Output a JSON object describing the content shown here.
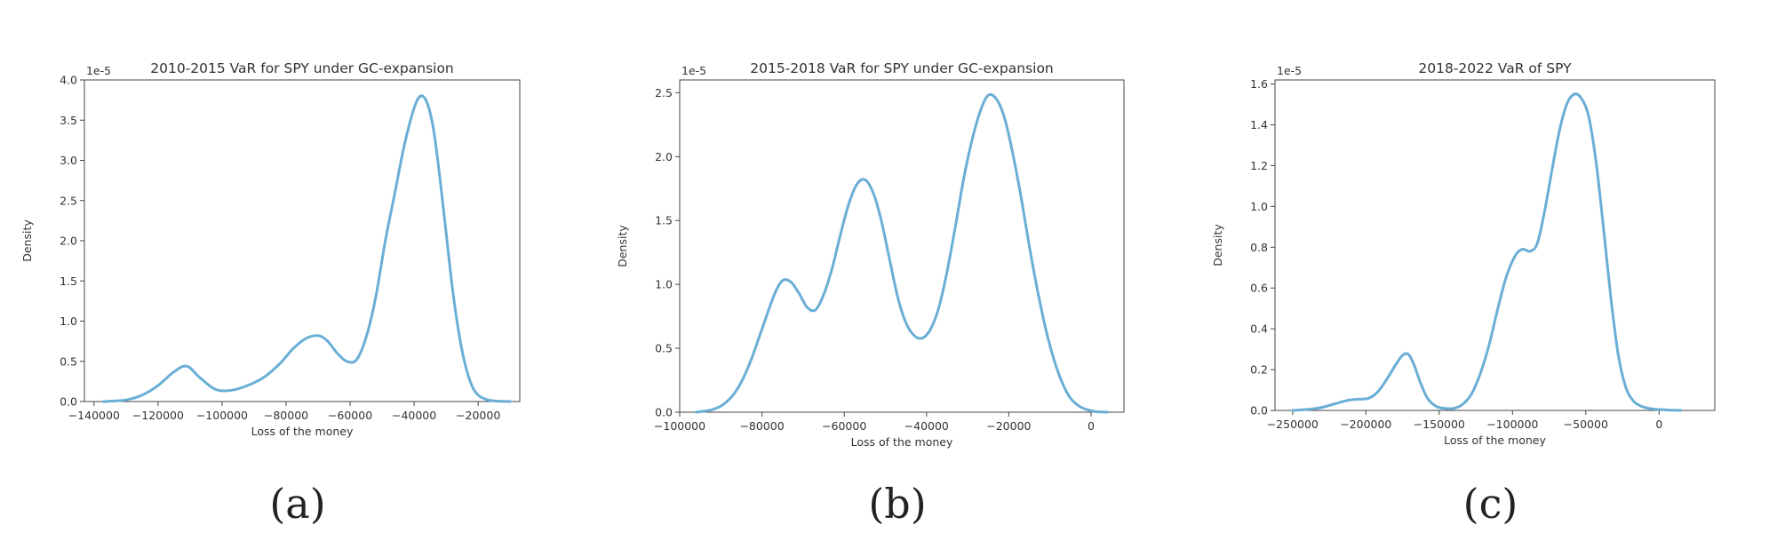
{
  "chart_data": [
    {
      "type": "line",
      "title": "2010-2015 VaR for SPY under GC-expansion",
      "xlabel": "Loss of the money",
      "ylabel": "Density",
      "y_offset_text": "1e-5",
      "xlim": [
        -143000,
        -7000
      ],
      "ylim": [
        0,
        4.0
      ],
      "xticks": [
        -140000,
        -120000,
        -100000,
        -80000,
        -60000,
        -40000,
        -20000
      ],
      "xtick_labels": [
        "−140000",
        "−120000",
        "−100000",
        "−80000",
        "−60000",
        "−40000",
        "−20000"
      ],
      "yticks": [
        0,
        0.5,
        1.0,
        1.5,
        2.0,
        2.5,
        3.0,
        3.5,
        4.0
      ],
      "ytick_labels": [
        "0.0",
        "0.5",
        "1.0",
        "1.5",
        "2.0",
        "2.5",
        "3.0",
        "3.5",
        "4.0"
      ],
      "caption": "(a)",
      "line_color": "#6aaed6",
      "series": [
        {
          "x": [
            -137000,
            -130000,
            -125000,
            -120000,
            -115000,
            -111000,
            -107000,
            -102000,
            -97000,
            -92000,
            -87000,
            -82000,
            -78000,
            -74000,
            -70000,
            -67000,
            -64000,
            -61000,
            -58000,
            -55000,
            -52000,
            -49000,
            -46000,
            -43000,
            -40000,
            -38000,
            -36000,
            -34000,
            -32000,
            -30000,
            -28000,
            -26000,
            -24000,
            -22000,
            -20000,
            -17000,
            -14000,
            -10000
          ],
          "y": [
            0,
            0.02,
            0.08,
            0.2,
            0.37,
            0.44,
            0.3,
            0.15,
            0.14,
            0.2,
            0.3,
            0.47,
            0.65,
            0.78,
            0.82,
            0.75,
            0.6,
            0.5,
            0.52,
            0.8,
            1.3,
            2.0,
            2.6,
            3.2,
            3.65,
            3.8,
            3.72,
            3.4,
            2.8,
            2.1,
            1.4,
            0.85,
            0.45,
            0.2,
            0.08,
            0.02,
            0.005,
            0
          ]
        }
      ]
    },
    {
      "type": "line",
      "title": "2015-2018 VaR for SPY under GC-expansion",
      "xlabel": "Loss of the money",
      "ylabel": "Density",
      "y_offset_text": "1e-5",
      "xlim": [
        -100000,
        8000
      ],
      "ylim": [
        0,
        2.6
      ],
      "xticks": [
        -100000,
        -80000,
        -60000,
        -40000,
        -20000,
        0
      ],
      "xtick_labels": [
        "−100000",
        "−80000",
        "−60000",
        "−40000",
        "−20000",
        "0"
      ],
      "yticks": [
        0,
        0.5,
        1.0,
        1.5,
        2.0,
        2.5
      ],
      "ytick_labels": [
        "0.0",
        "0.5",
        "1.0",
        "1.5",
        "2.0",
        "2.5"
      ],
      "caption": "(b)",
      "line_color": "#6aaed6",
      "series": [
        {
          "x": [
            -96000,
            -92000,
            -89000,
            -86000,
            -83000,
            -80000,
            -77000,
            -75000,
            -73000,
            -71000,
            -69000,
            -67000,
            -65000,
            -63000,
            -61000,
            -59000,
            -57000,
            -55000,
            -53000,
            -51000,
            -49000,
            -47000,
            -45000,
            -43000,
            -41000,
            -39000,
            -37000,
            -35000,
            -33000,
            -31000,
            -29000,
            -27000,
            -25000,
            -23000,
            -21000,
            -19000,
            -17000,
            -15000,
            -13000,
            -11000,
            -9000,
            -7000,
            -5000,
            -3000,
            -1000,
            1000,
            4000
          ],
          "y": [
            0,
            0.02,
            0.07,
            0.18,
            0.38,
            0.65,
            0.92,
            1.03,
            1.02,
            0.93,
            0.82,
            0.8,
            0.92,
            1.12,
            1.38,
            1.62,
            1.78,
            1.82,
            1.72,
            1.5,
            1.2,
            0.9,
            0.7,
            0.6,
            0.58,
            0.65,
            0.82,
            1.1,
            1.45,
            1.82,
            2.12,
            2.35,
            2.48,
            2.45,
            2.3,
            2.02,
            1.68,
            1.3,
            0.95,
            0.65,
            0.41,
            0.23,
            0.11,
            0.05,
            0.02,
            0.005,
            0
          ]
        }
      ]
    },
    {
      "type": "line",
      "title": "2018-2022 VaR of SPY",
      "xlabel": "Loss of the money",
      "ylabel": "Density",
      "y_offset_text": "1e-5",
      "xlim": [
        -262000,
        38000
      ],
      "ylim": [
        0,
        1.62
      ],
      "xticks": [
        -250000,
        -200000,
        -150000,
        -100000,
        -50000,
        0
      ],
      "xtick_labels": [
        "−250000",
        "−200000",
        "−150000",
        "−100000",
        "−50000",
        "0"
      ],
      "yticks": [
        0,
        0.2,
        0.4,
        0.6,
        0.8,
        1.0,
        1.2,
        1.4,
        1.6
      ],
      "ytick_labels": [
        "0.0",
        "0.2",
        "0.4",
        "0.6",
        "0.8",
        "1.0",
        "1.2",
        "1.4",
        "1.6"
      ],
      "caption": "(c)",
      "line_color": "#6aaed6",
      "series": [
        {
          "x": [
            -250000,
            -240000,
            -230000,
            -220000,
            -212000,
            -205000,
            -198000,
            -192000,
            -186000,
            -180000,
            -175000,
            -171000,
            -167000,
            -163000,
            -158000,
            -152000,
            -146000,
            -140000,
            -134000,
            -128000,
            -122000,
            -116000,
            -110000,
            -104000,
            -98000,
            -93000,
            -88000,
            -83000,
            -78000,
            -73000,
            -68000,
            -63000,
            -58000,
            -53000,
            -48000,
            -43000,
            -38000,
            -33000,
            -28000,
            -23000,
            -18000,
            -12000,
            -5000,
            5000,
            15000
          ],
          "y": [
            0,
            0.005,
            0.015,
            0.035,
            0.05,
            0.055,
            0.06,
            0.09,
            0.15,
            0.22,
            0.27,
            0.275,
            0.22,
            0.14,
            0.06,
            0.02,
            0.01,
            0.01,
            0.03,
            0.08,
            0.18,
            0.32,
            0.5,
            0.66,
            0.76,
            0.79,
            0.78,
            0.82,
            0.98,
            1.18,
            1.37,
            1.5,
            1.55,
            1.53,
            1.44,
            1.22,
            0.9,
            0.56,
            0.28,
            0.12,
            0.05,
            0.02,
            0.008,
            0.002,
            0
          ]
        }
      ]
    }
  ]
}
